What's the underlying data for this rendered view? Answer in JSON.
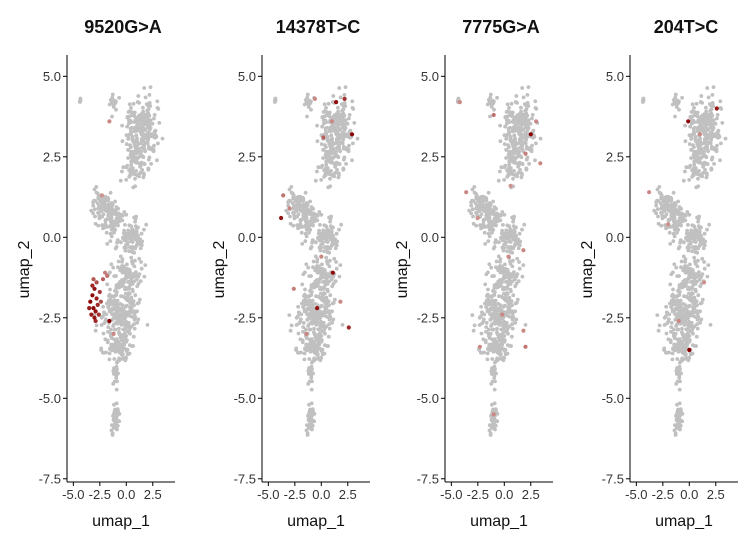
{
  "chart_data": [
    {
      "type": "scatter",
      "title": "9520G>A",
      "xlabel": "umap_1",
      "ylabel": "umap_2",
      "xlim": [
        -5.6,
        4.6
      ],
      "ylim": [
        -7.6,
        5.6
      ],
      "xticks": [
        -5.0,
        -2.5,
        0.0,
        2.5
      ],
      "xtick_labels": [
        "-5.0",
        "-2.5",
        "0.0",
        "2.5"
      ],
      "yticks": [
        5.0,
        2.5,
        0.0,
        -2.5,
        -5.0,
        -7.5
      ],
      "ytick_labels": [
        "5.0",
        "2.5",
        "0.0",
        "-2.5",
        "-5.0",
        "-7.5"
      ],
      "grid": false,
      "highlighted_points": [
        {
          "x": -3.0,
          "y": -1.6,
          "level": 0.9
        },
        {
          "x": -3.2,
          "y": -1.8,
          "level": 0.95
        },
        {
          "x": -2.8,
          "y": -1.9,
          "level": 0.85
        },
        {
          "x": -3.4,
          "y": -2.0,
          "level": 1.0
        },
        {
          "x": -3.1,
          "y": -2.2,
          "level": 0.95
        },
        {
          "x": -2.9,
          "y": -2.3,
          "level": 0.9
        },
        {
          "x": -3.3,
          "y": -2.4,
          "level": 0.85
        },
        {
          "x": -2.7,
          "y": -2.1,
          "level": 0.8
        },
        {
          "x": -3.0,
          "y": -2.5,
          "level": 0.9
        },
        {
          "x": -2.6,
          "y": -2.4,
          "level": 0.75
        },
        {
          "x": -3.2,
          "y": -1.5,
          "level": 0.8
        },
        {
          "x": -2.5,
          "y": -1.7,
          "level": 0.7
        },
        {
          "x": -2.8,
          "y": -1.4,
          "level": 0.6
        },
        {
          "x": -3.5,
          "y": -2.2,
          "level": 0.85
        },
        {
          "x": -2.4,
          "y": -2.0,
          "level": 0.6
        },
        {
          "x": -2.9,
          "y": -2.6,
          "level": 0.8
        },
        {
          "x": -2.2,
          "y": -1.3,
          "level": 0.5
        },
        {
          "x": -3.1,
          "y": -1.3,
          "level": 0.55
        },
        {
          "x": -1.6,
          "y": -2.6,
          "level": 1.0
        },
        {
          "x": -1.8,
          "y": -1.2,
          "level": 0.4
        },
        {
          "x": -2.0,
          "y": -1.1,
          "level": 0.35
        },
        {
          "x": -1.6,
          "y": 3.6,
          "level": 0.3
        },
        {
          "x": -1.2,
          "y": -3.0,
          "level": 0.3
        },
        {
          "x": -2.3,
          "y": 1.3,
          "level": 0.25
        }
      ]
    },
    {
      "type": "scatter",
      "title": "14378T>C",
      "xlabel": "umap_1",
      "ylabel": "umap_2",
      "xlim": [
        -5.6,
        4.6
      ],
      "ylim": [
        -7.6,
        5.6
      ],
      "xticks": [
        -5.0,
        -2.5,
        0.0,
        2.5
      ],
      "xtick_labels": [
        "-5.0",
        "-2.5",
        "0.0",
        "2.5"
      ],
      "yticks": [
        5.0,
        2.5,
        0.0,
        -2.5,
        -5.0,
        -7.5
      ],
      "ytick_labels": [
        "5.0",
        "2.5",
        "0.0",
        "-2.5",
        "-5.0",
        "-7.5"
      ],
      "grid": false,
      "highlighted_points": [
        {
          "x": 1.4,
          "y": 4.2,
          "level": 0.95
        },
        {
          "x": 2.2,
          "y": 4.3,
          "level": 0.75
        },
        {
          "x": 2.9,
          "y": 3.2,
          "level": 1.0
        },
        {
          "x": 0.2,
          "y": 3.1,
          "level": 0.5
        },
        {
          "x": -0.6,
          "y": 4.3,
          "level": 0.3
        },
        {
          "x": 1.0,
          "y": 3.6,
          "level": 0.3
        },
        {
          "x": -3.8,
          "y": 0.6,
          "level": 0.9
        },
        {
          "x": -3.6,
          "y": 1.3,
          "level": 0.4
        },
        {
          "x": -3.0,
          "y": 0.9,
          "level": 0.3
        },
        {
          "x": 1.1,
          "y": -1.1,
          "level": 0.95
        },
        {
          "x": -0.4,
          "y": -2.2,
          "level": 0.9
        },
        {
          "x": 2.6,
          "y": -2.8,
          "level": 0.8
        },
        {
          "x": -2.6,
          "y": -1.6,
          "level": 0.35
        },
        {
          "x": 0.0,
          "y": -0.6,
          "level": 0.3
        },
        {
          "x": -1.4,
          "y": -3.0,
          "level": 0.3
        },
        {
          "x": 1.8,
          "y": -2.0,
          "level": 0.3
        }
      ]
    },
    {
      "type": "scatter",
      "title": "7775G>A",
      "xlabel": "umap_1",
      "ylabel": "umap_2",
      "xlim": [
        -5.6,
        4.6
      ],
      "ylim": [
        -7.6,
        5.6
      ],
      "xticks": [
        -5.0,
        -2.5,
        0.0,
        2.5
      ],
      "xtick_labels": [
        "-5.0",
        "-2.5",
        "0.0",
        "2.5"
      ],
      "yticks": [
        5.0,
        2.5,
        0.0,
        -2.5,
        -5.0,
        -7.5
      ],
      "ytick_labels": [
        "5.0",
        "2.5",
        "0.0",
        "-2.5",
        "-5.0",
        "-7.5"
      ],
      "grid": false,
      "highlighted_points": [
        {
          "x": 2.5,
          "y": 3.2,
          "level": 1.0
        },
        {
          "x": -1.0,
          "y": 3.8,
          "level": 0.4
        },
        {
          "x": 3.0,
          "y": 3.6,
          "level": 0.3
        },
        {
          "x": 2.0,
          "y": 2.6,
          "level": 0.35
        },
        {
          "x": 3.4,
          "y": 2.3,
          "level": 0.3
        },
        {
          "x": -4.2,
          "y": 4.2,
          "level": 0.3
        },
        {
          "x": -3.6,
          "y": 1.4,
          "level": 0.3
        },
        {
          "x": -2.5,
          "y": 0.6,
          "level": 0.25
        },
        {
          "x": 0.4,
          "y": -0.6,
          "level": 0.3
        },
        {
          "x": 1.8,
          "y": -0.4,
          "level": 0.3
        },
        {
          "x": 2.0,
          "y": -3.4,
          "level": 0.4
        },
        {
          "x": 1.8,
          "y": -2.9,
          "level": 0.3
        },
        {
          "x": -2.3,
          "y": -3.4,
          "level": 0.3
        },
        {
          "x": -0.2,
          "y": -2.4,
          "level": 0.3
        },
        {
          "x": -1.0,
          "y": -5.5,
          "level": 0.3
        },
        {
          "x": 0.6,
          "y": 1.6,
          "level": 0.25
        }
      ]
    },
    {
      "type": "scatter",
      "title": "204T>C",
      "xlabel": "umap_1",
      "ylabel": "umap_2",
      "xlim": [
        -5.6,
        4.6
      ],
      "ylim": [
        -7.6,
        5.6
      ],
      "xticks": [
        -5.0,
        -2.5,
        0.0,
        2.5
      ],
      "xtick_labels": [
        "-5.0",
        "-2.5",
        "0.0",
        "2.5"
      ],
      "yticks": [
        5.0,
        2.5,
        0.0,
        -2.5,
        -5.0,
        -7.5
      ],
      "ytick_labels": [
        "5.0",
        "2.5",
        "0.0",
        "-2.5",
        "-5.0",
        "-7.5"
      ],
      "grid": false,
      "highlighted_points": [
        {
          "x": -0.1,
          "y": 3.6,
          "level": 0.95
        },
        {
          "x": 2.6,
          "y": 4.0,
          "level": 0.9
        },
        {
          "x": 0.0,
          "y": -3.5,
          "level": 1.0
        },
        {
          "x": 1.0,
          "y": 3.2,
          "level": 0.3
        },
        {
          "x": -3.8,
          "y": 1.4,
          "level": 0.3
        },
        {
          "x": -2.0,
          "y": 0.4,
          "level": 0.25
        },
        {
          "x": -1.0,
          "y": -2.6,
          "level": 0.3
        },
        {
          "x": 1.4,
          "y": -1.4,
          "level": 0.25
        }
      ]
    }
  ],
  "colors": {
    "background_point": "#c0c0c0",
    "low": "#e3c2bd",
    "high": "#8b0000"
  }
}
